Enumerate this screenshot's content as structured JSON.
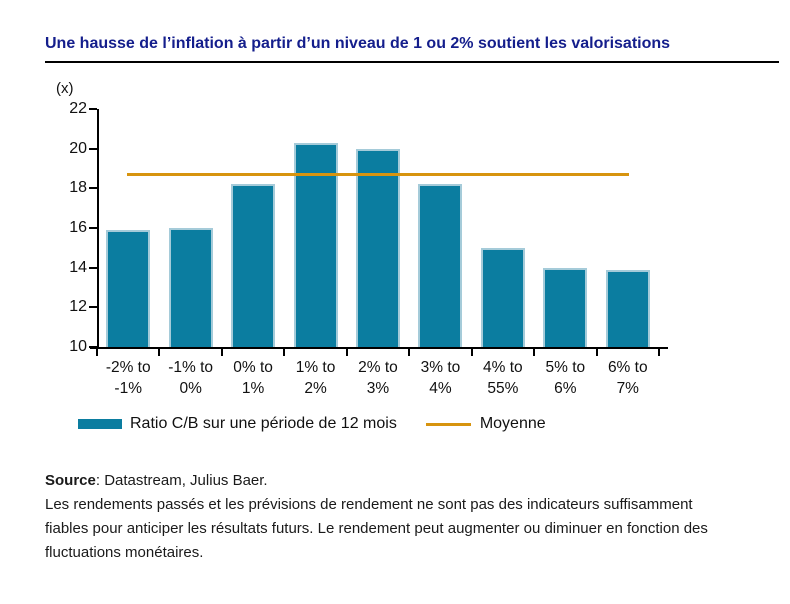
{
  "header": {
    "title": "Une hausse de l’inflation à partir d’un niveau de 1 ou 2% soutient les valorisations"
  },
  "chart_data": {
    "type": "bar",
    "y_unit_label": "(x)",
    "categories": [
      "-2% to -1%",
      "-1% to 0%",
      "0% to 1%",
      "1% to 2%",
      "2% to 3%",
      "3% to 4%",
      "4% to 55%",
      "5% to 6%",
      "6% to 7%"
    ],
    "values": [
      15.9,
      16.0,
      18.2,
      20.3,
      20.0,
      18.2,
      15.0,
      14.0,
      13.9
    ],
    "series_label": "Ratio C/B sur une période de 12 mois",
    "mean_line": {
      "label": "Moyenne",
      "value": 18.7
    },
    "ylim": [
      10,
      22
    ],
    "yticks": [
      22,
      20,
      18,
      16,
      14,
      12,
      10
    ],
    "grid": false,
    "legend_position": "bottom",
    "colors": {
      "bar": "#0b7da0",
      "bar_edge": "#a5cbd9",
      "mean_line": "#d7940f"
    }
  },
  "footer": {
    "source_bold": "Source",
    "source_rest": ": Datastream, Julius Baer.",
    "disclaimer": "Les rendements passés et les prévisions de rendement ne sont pas des indicateurs suffisamment fiables pour anticiper les résultats futurs. Le rendement peut augmenter ou diminuer en fonction des fluctuations monétaires."
  },
  "colors": {
    "title": "#141e8c",
    "rule": "#000000",
    "axis": "#000000",
    "text": "#1a1a1a"
  }
}
